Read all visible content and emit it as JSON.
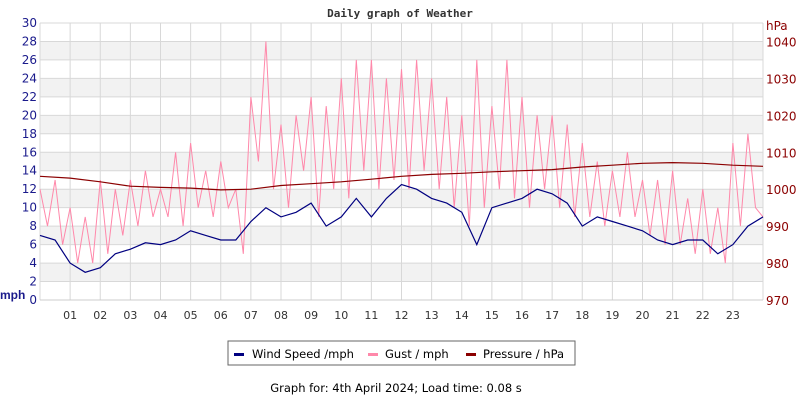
{
  "chart_data": {
    "type": "line",
    "title": "Daily graph of Weather",
    "footer": "Graph for: 4th April 2024; Load time: 0.08 s",
    "y_left": {
      "label": "mph",
      "range": [
        0,
        30
      ],
      "ticks": [
        0,
        2,
        4,
        6,
        8,
        10,
        12,
        14,
        16,
        18,
        20,
        22,
        24,
        26,
        28,
        30
      ]
    },
    "y_right": {
      "label": "hPa",
      "range": [
        970,
        1045
      ],
      "ticks": [
        970,
        980,
        990,
        1000,
        1010,
        1020,
        1030,
        1040
      ]
    },
    "x": {
      "range": [
        0,
        24
      ],
      "tick_labels": [
        "01",
        "02",
        "03",
        "04",
        "05",
        "06",
        "07",
        "08",
        "09",
        "10",
        "11",
        "12",
        "13",
        "14",
        "15",
        "16",
        "17",
        "18",
        "19",
        "20",
        "21",
        "22",
        "23"
      ]
    },
    "grid": true,
    "legend_position": "bottom",
    "series": [
      {
        "name": "Wind Speed /mph",
        "axis": "left",
        "color": "#000080",
        "x_step_hours": 0.5,
        "values": [
          7,
          6.5,
          4,
          3,
          3.5,
          5,
          5.5,
          6.2,
          6,
          6.5,
          7.5,
          7,
          6.5,
          6.5,
          8.5,
          10,
          9,
          9.5,
          10.5,
          8,
          9,
          11,
          9,
          11,
          12.5,
          12,
          11,
          10.5,
          9.5,
          6,
          10,
          10.5,
          11,
          12,
          11.5,
          10.5,
          8,
          9,
          8.5,
          8,
          7.5,
          6.5,
          6,
          6.5,
          6.5,
          5,
          6,
          8,
          9
        ]
      },
      {
        "name": "Gust / mph",
        "axis": "left",
        "color": "#ff88aa",
        "x_step_hours": 0.25,
        "values": [
          12,
          8,
          13,
          6,
          10,
          4,
          9,
          4,
          13,
          5,
          12,
          7,
          13,
          8,
          14,
          9,
          12,
          9,
          16,
          8,
          17,
          10,
          14,
          9,
          15,
          10,
          12,
          5,
          22,
          15,
          28,
          12,
          19,
          10,
          20,
          14,
          22,
          9,
          21,
          12,
          24,
          11,
          26,
          14,
          26,
          12,
          24,
          13,
          25,
          12,
          26,
          14,
          24,
          12,
          22,
          10,
          20,
          8,
          26,
          10,
          21,
          12,
          26,
          11,
          22,
          10,
          20,
          12,
          20,
          10,
          19,
          9,
          17,
          9,
          15,
          8,
          14,
          9,
          16,
          9,
          13,
          7,
          13,
          6,
          14,
          6,
          11,
          5,
          12,
          5,
          10,
          4,
          17,
          8,
          18,
          10,
          9
        ]
      },
      {
        "name": "Pressure / hPa",
        "axis": "right",
        "color": "#8b0000",
        "x_step_hours": 1,
        "values": [
          1003.5,
          1003,
          1002,
          1000.8,
          1000.5,
          1000.3,
          999.8,
          1000,
          1001,
          1001.5,
          1002,
          1002.7,
          1003.5,
          1004,
          1004.3,
          1004.7,
          1005,
          1005.3,
          1006,
          1006.5,
          1007,
          1007.2,
          1007,
          1006.5,
          1006.2
        ]
      }
    ]
  }
}
